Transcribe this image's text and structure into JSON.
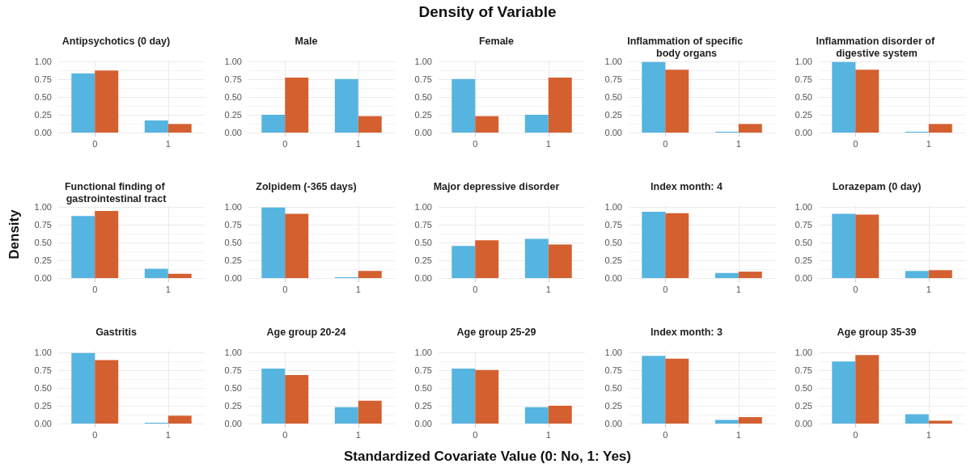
{
  "chart_data": [
    {
      "type": "bar",
      "title": "Antipsychotics (0 day)",
      "categories": [
        "0",
        "1"
      ],
      "series": [
        {
          "color": "#56b4e0",
          "values": [
            0.83,
            0.17
          ]
        },
        {
          "color": "#d45f2f",
          "values": [
            0.87,
            0.12
          ]
        }
      ],
      "ylim": [
        0,
        1.02
      ],
      "yticks": [
        {
          "value": 0,
          "label": "0.00"
        },
        {
          "value": 0.25,
          "label": "0.25"
        },
        {
          "value": 0.5,
          "label": "0.50"
        },
        {
          "value": 0.75,
          "label": "0.75"
        },
        {
          "value": 1,
          "label": "1.00"
        }
      ],
      "grid": true
    },
    {
      "type": "bar",
      "title": "Male",
      "categories": [
        "0",
        "1"
      ],
      "series": [
        {
          "color": "#56b4e0",
          "values": [
            0.25,
            0.75
          ]
        },
        {
          "color": "#d45f2f",
          "values": [
            0.77,
            0.23
          ]
        }
      ],
      "ylim": [
        0,
        1.02
      ],
      "yticks": [
        {
          "value": 0,
          "label": "0.00"
        },
        {
          "value": 0.25,
          "label": "0.25"
        },
        {
          "value": 0.5,
          "label": "0.50"
        },
        {
          "value": 0.75,
          "label": "0.75"
        },
        {
          "value": 1,
          "label": "1.00"
        }
      ],
      "grid": true
    },
    {
      "type": "bar",
      "title": "Female",
      "annotations": [
        "Density of Variable"
      ],
      "categories": [
        "0",
        "1"
      ],
      "series": [
        {
          "color": "#56b4e0",
          "values": [
            0.75,
            0.25
          ]
        },
        {
          "color": "#d45f2f",
          "values": [
            0.23,
            0.77
          ]
        }
      ],
      "ylim": [
        0,
        1.02
      ],
      "yticks": [
        {
          "value": 0,
          "label": "0.00"
        },
        {
          "value": 0.25,
          "label": "0.25"
        },
        {
          "value": 0.5,
          "label": "0.50"
        },
        {
          "value": 0.75,
          "label": "0.75"
        },
        {
          "value": 1,
          "label": "1.00"
        }
      ],
      "grid": true
    },
    {
      "type": "bar",
      "title": "Inflammation of specific body organs",
      "categories": [
        "0",
        "1"
      ],
      "series": [
        {
          "color": "#56b4e0",
          "values": [
            0.99,
            0.01
          ]
        },
        {
          "color": "#d45f2f",
          "values": [
            0.88,
            0.12
          ]
        }
      ],
      "ylim": [
        0,
        1.02
      ],
      "yticks": [
        {
          "value": 0,
          "label": "0.00"
        },
        {
          "value": 0.25,
          "label": "0.25"
        },
        {
          "value": 0.5,
          "label": "0.50"
        },
        {
          "value": 0.75,
          "label": "0.75"
        },
        {
          "value": 1,
          "label": "1.00"
        }
      ],
      "grid": true
    },
    {
      "type": "bar",
      "title": "Inflammation disorder of digestive system",
      "categories": [
        "0",
        "1"
      ],
      "series": [
        {
          "color": "#56b4e0",
          "values": [
            0.99,
            0.01
          ]
        },
        {
          "color": "#d45f2f",
          "values": [
            0.88,
            0.12
          ]
        }
      ],
      "ylim": [
        0,
        1.02
      ],
      "yticks": [
        {
          "value": 0,
          "label": "0.00"
        },
        {
          "value": 0.25,
          "label": "0.25"
        },
        {
          "value": 0.5,
          "label": "0.50"
        },
        {
          "value": 0.75,
          "label": "0.75"
        },
        {
          "value": 1,
          "label": "1.00"
        }
      ],
      "grid": true
    },
    {
      "type": "bar",
      "title": "Functional finding of gastrointestinal tract",
      "ylabel": "Density",
      "categories": [
        "0",
        "1"
      ],
      "series": [
        {
          "color": "#56b4e0",
          "values": [
            0.87,
            0.13
          ]
        },
        {
          "color": "#d45f2f",
          "values": [
            0.94,
            0.06
          ]
        }
      ],
      "ylim": [
        0,
        1.02
      ],
      "yticks": [
        {
          "value": 0,
          "label": "0.00"
        },
        {
          "value": 0.25,
          "label": "0.25"
        },
        {
          "value": 0.5,
          "label": "0.50"
        },
        {
          "value": 0.75,
          "label": "0.75"
        },
        {
          "value": 1,
          "label": "1.00"
        }
      ],
      "grid": true
    },
    {
      "type": "bar",
      "title": "Zolpidem (-365 days)",
      "categories": [
        "0",
        "1"
      ],
      "series": [
        {
          "color": "#56b4e0",
          "values": [
            0.99,
            0.01
          ]
        },
        {
          "color": "#d45f2f",
          "values": [
            0.9,
            0.1
          ]
        }
      ],
      "ylim": [
        0,
        1.02
      ],
      "yticks": [
        {
          "value": 0,
          "label": "0.00"
        },
        {
          "value": 0.25,
          "label": "0.25"
        },
        {
          "value": 0.5,
          "label": "0.50"
        },
        {
          "value": 0.75,
          "label": "0.75"
        },
        {
          "value": 1,
          "label": "1.00"
        }
      ],
      "grid": true
    },
    {
      "type": "bar",
      "title": "Major depressive disorder",
      "categories": [
        "0",
        "1"
      ],
      "series": [
        {
          "color": "#56b4e0",
          "values": [
            0.45,
            0.55
          ]
        },
        {
          "color": "#d45f2f",
          "values": [
            0.53,
            0.47
          ]
        }
      ],
      "ylim": [
        0,
        1.02
      ],
      "yticks": [
        {
          "value": 0,
          "label": "0.00"
        },
        {
          "value": 0.25,
          "label": "0.25"
        },
        {
          "value": 0.5,
          "label": "0.50"
        },
        {
          "value": 0.75,
          "label": "0.75"
        },
        {
          "value": 1,
          "label": "1.00"
        }
      ],
      "grid": true
    },
    {
      "type": "bar",
      "title": "Index month: 4",
      "categories": [
        "0",
        "1"
      ],
      "series": [
        {
          "color": "#56b4e0",
          "values": [
            0.93,
            0.07
          ]
        },
        {
          "color": "#d45f2f",
          "values": [
            0.91,
            0.09
          ]
        }
      ],
      "ylim": [
        0,
        1.02
      ],
      "yticks": [
        {
          "value": 0,
          "label": "0.00"
        },
        {
          "value": 0.25,
          "label": "0.25"
        },
        {
          "value": 0.5,
          "label": "0.50"
        },
        {
          "value": 0.75,
          "label": "0.75"
        },
        {
          "value": 1,
          "label": "1.00"
        }
      ],
      "grid": true
    },
    {
      "type": "bar",
      "title": "Lorazepam (0 day)",
      "categories": [
        "0",
        "1"
      ],
      "series": [
        {
          "color": "#56b4e0",
          "values": [
            0.9,
            0.1
          ]
        },
        {
          "color": "#d45f2f",
          "values": [
            0.89,
            0.11
          ]
        }
      ],
      "ylim": [
        0,
        1.02
      ],
      "yticks": [
        {
          "value": 0,
          "label": "0.00"
        },
        {
          "value": 0.25,
          "label": "0.25"
        },
        {
          "value": 0.5,
          "label": "0.50"
        },
        {
          "value": 0.75,
          "label": "0.75"
        },
        {
          "value": 1,
          "label": "1.00"
        }
      ],
      "grid": true
    },
    {
      "type": "bar",
      "title": "Gastritis",
      "categories": [
        "0",
        "1"
      ],
      "series": [
        {
          "color": "#56b4e0",
          "values": [
            0.99,
            0.01
          ]
        },
        {
          "color": "#d45f2f",
          "values": [
            0.89,
            0.11
          ]
        }
      ],
      "ylim": [
        0,
        1.02
      ],
      "yticks": [
        {
          "value": 0,
          "label": "0.00"
        },
        {
          "value": 0.25,
          "label": "0.25"
        },
        {
          "value": 0.5,
          "label": "0.50"
        },
        {
          "value": 0.75,
          "label": "0.75"
        },
        {
          "value": 1,
          "label": "1.00"
        }
      ],
      "grid": true
    },
    {
      "type": "bar",
      "title": "Age group 20-24",
      "categories": [
        "0",
        "1"
      ],
      "series": [
        {
          "color": "#56b4e0",
          "values": [
            0.77,
            0.23
          ]
        },
        {
          "color": "#d45f2f",
          "values": [
            0.68,
            0.32
          ]
        }
      ],
      "ylim": [
        0,
        1.02
      ],
      "yticks": [
        {
          "value": 0,
          "label": "0.00"
        },
        {
          "value": 0.25,
          "label": "0.25"
        },
        {
          "value": 0.5,
          "label": "0.50"
        },
        {
          "value": 0.75,
          "label": "0.75"
        },
        {
          "value": 1,
          "label": "1.00"
        }
      ],
      "grid": true
    },
    {
      "type": "bar",
      "title": "Age group 25-29",
      "xlabel": "Standardized Covariate Value (0: No, 1: Yes)",
      "categories": [
        "0",
        "1"
      ],
      "series": [
        {
          "color": "#56b4e0",
          "values": [
            0.77,
            0.23
          ]
        },
        {
          "color": "#d45f2f",
          "values": [
            0.75,
            0.25
          ]
        }
      ],
      "ylim": [
        0,
        1.02
      ],
      "yticks": [
        {
          "value": 0,
          "label": "0.00"
        },
        {
          "value": 0.25,
          "label": "0.25"
        },
        {
          "value": 0.5,
          "label": "0.50"
        },
        {
          "value": 0.75,
          "label": "0.75"
        },
        {
          "value": 1,
          "label": "1.00"
        }
      ],
      "grid": true
    },
    {
      "type": "bar",
      "title": "Index month: 3",
      "categories": [
        "0",
        "1"
      ],
      "series": [
        {
          "color": "#56b4e0",
          "values": [
            0.95,
            0.05
          ]
        },
        {
          "color": "#d45f2f",
          "values": [
            0.91,
            0.09
          ]
        }
      ],
      "ylim": [
        0,
        1.02
      ],
      "yticks": [
        {
          "value": 0,
          "label": "0.00"
        },
        {
          "value": 0.25,
          "label": "0.25"
        },
        {
          "value": 0.5,
          "label": "0.50"
        },
        {
          "value": 0.75,
          "label": "0.75"
        },
        {
          "value": 1,
          "label": "1.00"
        }
      ],
      "grid": true
    },
    {
      "type": "bar",
      "title": "Age group 35-39",
      "categories": [
        "0",
        "1"
      ],
      "series": [
        {
          "color": "#56b4e0",
          "values": [
            0.87,
            0.13
          ]
        },
        {
          "color": "#d45f2f",
          "values": [
            0.96,
            0.04
          ]
        }
      ],
      "ylim": [
        0,
        1.02
      ],
      "yticks": [
        {
          "value": 0,
          "label": "0.00"
        },
        {
          "value": 0.25,
          "label": "0.25"
        },
        {
          "value": 0.5,
          "label": "0.50"
        },
        {
          "value": 0.75,
          "label": "0.75"
        },
        {
          "value": 1,
          "label": "1.00"
        }
      ],
      "grid": true
    }
  ]
}
